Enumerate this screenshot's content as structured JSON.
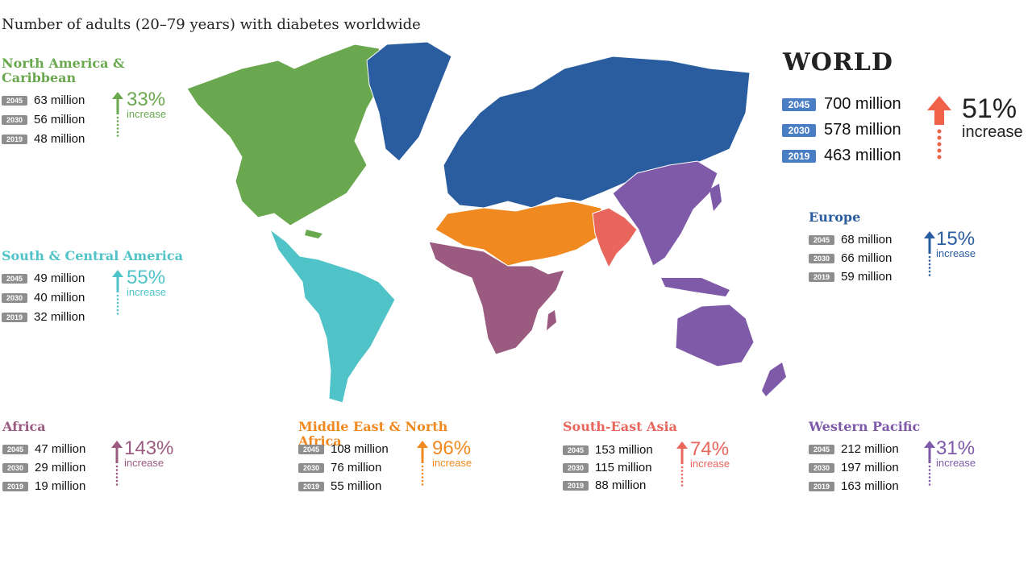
{
  "title": "Number of adults (20–79 years) with diabetes worldwide",
  "unit": "million",
  "world": {
    "name": "WORLD",
    "rows": [
      {
        "year": "2045",
        "value": "700 million"
      },
      {
        "year": "2030",
        "value": "578 million"
      },
      {
        "year": "2019",
        "value": "463 million"
      }
    ],
    "pct": "51%",
    "increase": "increase",
    "color": "#f0614a"
  },
  "regions": [
    {
      "key": "nac",
      "name": "North America &\nCaribbean",
      "color": "#6aa84f",
      "rows": [
        {
          "year": "2045",
          "value": "63 million"
        },
        {
          "year": "2030",
          "value": "56 million"
        },
        {
          "year": "2019",
          "value": "48 million"
        }
      ],
      "pct": "33%",
      "increase": "increase"
    },
    {
      "key": "sca",
      "name": "South & Central America",
      "color": "#4fc3c7",
      "rows": [
        {
          "year": "2045",
          "value": "49 million"
        },
        {
          "year": "2030",
          "value": "40 million"
        },
        {
          "year": "2019",
          "value": "32 million"
        }
      ],
      "pct": "55%",
      "increase": "increase"
    },
    {
      "key": "eur",
      "name": "Europe",
      "color": "#2a5d9f",
      "rows": [
        {
          "year": "2045",
          "value": "68 million"
        },
        {
          "year": "2030",
          "value": "66 million"
        },
        {
          "year": "2019",
          "value": "59 million"
        }
      ],
      "pct": "15%",
      "increase": "increase"
    },
    {
      "key": "afr",
      "name": "Africa",
      "color": "#9b5a7f",
      "rows": [
        {
          "year": "2045",
          "value": "47 million"
        },
        {
          "year": "2030",
          "value": "29 million"
        },
        {
          "year": "2019",
          "value": "19 million"
        }
      ],
      "pct": "143%",
      "increase": "increase"
    },
    {
      "key": "mena",
      "name": "Middle East & North Africa",
      "color": "#f0891f",
      "rows": [
        {
          "year": "2045",
          "value": "108 million"
        },
        {
          "year": "2030",
          "value": "76 million"
        },
        {
          "year": "2019",
          "value": "55 million"
        }
      ],
      "pct": "96%",
      "increase": "increase"
    },
    {
      "key": "sea",
      "name": "South-East Asia",
      "color": "#e8665c",
      "rows": [
        {
          "year": "2045",
          "value": "153 million"
        },
        {
          "year": "2030",
          "value": "115 million"
        },
        {
          "year": "2019",
          "value": "88 million"
        }
      ],
      "pct": "74%",
      "increase": "increase"
    },
    {
      "key": "wp",
      "name": "Western Pacific",
      "color": "#7e5aa8",
      "rows": [
        {
          "year": "2045",
          "value": "212 million"
        },
        {
          "year": "2030",
          "value": "197 million"
        },
        {
          "year": "2019",
          "value": "163 million"
        }
      ],
      "pct": "31%",
      "increase": "increase"
    }
  ]
}
